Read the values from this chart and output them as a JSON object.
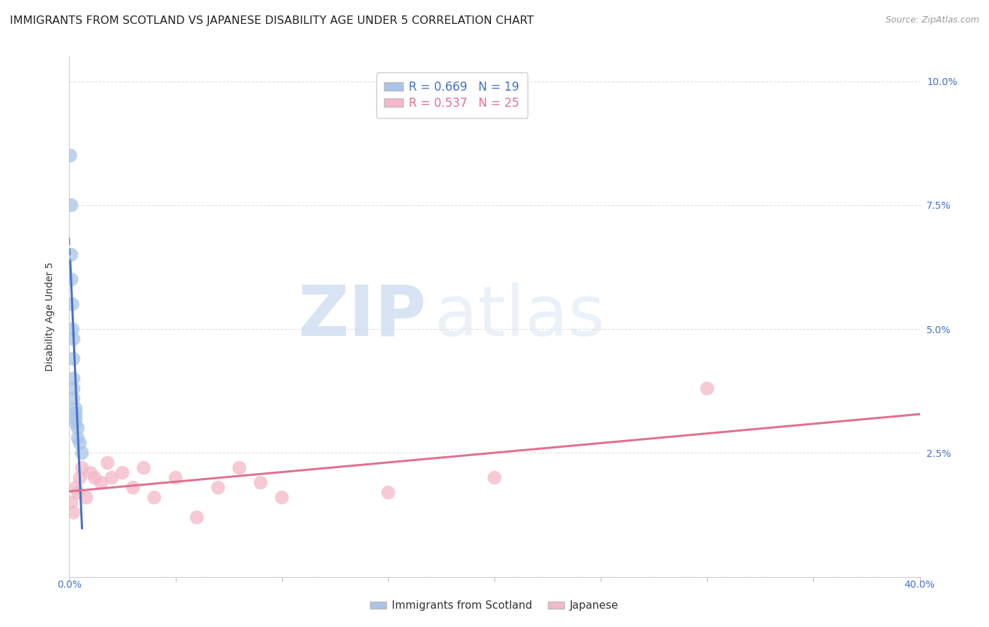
{
  "title": "IMMIGRANTS FROM SCOTLAND VS JAPANESE DISABILITY AGE UNDER 5 CORRELATION CHART",
  "source": "Source: ZipAtlas.com",
  "ylabel": "Disability Age Under 5",
  "background_color": "#ffffff",
  "grid_color": "#e0e0e0",
  "scotland_color": "#aac4e8",
  "scotland_line_color": "#4472c4",
  "scotland_R": 0.669,
  "scotland_N": 19,
  "scotland_x": [
    0.0005,
    0.001,
    0.001,
    0.001,
    0.0015,
    0.0015,
    0.002,
    0.002,
    0.002,
    0.002,
    0.002,
    0.003,
    0.003,
    0.003,
    0.003,
    0.004,
    0.004,
    0.005,
    0.006
  ],
  "scotland_y": [
    0.085,
    0.075,
    0.065,
    0.06,
    0.055,
    0.05,
    0.048,
    0.044,
    0.04,
    0.038,
    0.036,
    0.034,
    0.033,
    0.032,
    0.031,
    0.03,
    0.028,
    0.027,
    0.025
  ],
  "japanese_color": "#f4b8c8",
  "japanese_line_color": "#e07090",
  "japanese_R": 0.537,
  "japanese_N": 25,
  "japanese_x": [
    0.001,
    0.002,
    0.003,
    0.004,
    0.005,
    0.006,
    0.008,
    0.01,
    0.012,
    0.015,
    0.018,
    0.02,
    0.025,
    0.03,
    0.035,
    0.04,
    0.05,
    0.06,
    0.07,
    0.08,
    0.09,
    0.1,
    0.15,
    0.2,
    0.3
  ],
  "japanese_y": [
    0.015,
    0.013,
    0.018,
    0.017,
    0.02,
    0.022,
    0.016,
    0.021,
    0.02,
    0.019,
    0.023,
    0.02,
    0.021,
    0.018,
    0.022,
    0.016,
    0.02,
    0.012,
    0.018,
    0.022,
    0.019,
    0.016,
    0.017,
    0.02,
    0.038
  ],
  "xlim": [
    0.0,
    0.4
  ],
  "ylim": [
    0.0,
    0.105
  ],
  "ytick_vals": [
    0.0,
    0.025,
    0.05,
    0.075,
    0.1
  ],
  "ytick_labels": [
    "",
    "2.5%",
    "5.0%",
    "7.5%",
    "10.0%"
  ],
  "xtick_vals": [
    0.0,
    0.05,
    0.1,
    0.15,
    0.2,
    0.25,
    0.3,
    0.35,
    0.4
  ],
  "legend_labels": [
    "Immigrants from Scotland",
    "Japanese"
  ],
  "watermark_zip": "ZIP",
  "watermark_atlas": "atlas",
  "title_fontsize": 11.5,
  "axis_label_fontsize": 10,
  "tick_fontsize": 10,
  "right_tick_color": "#4472c4"
}
